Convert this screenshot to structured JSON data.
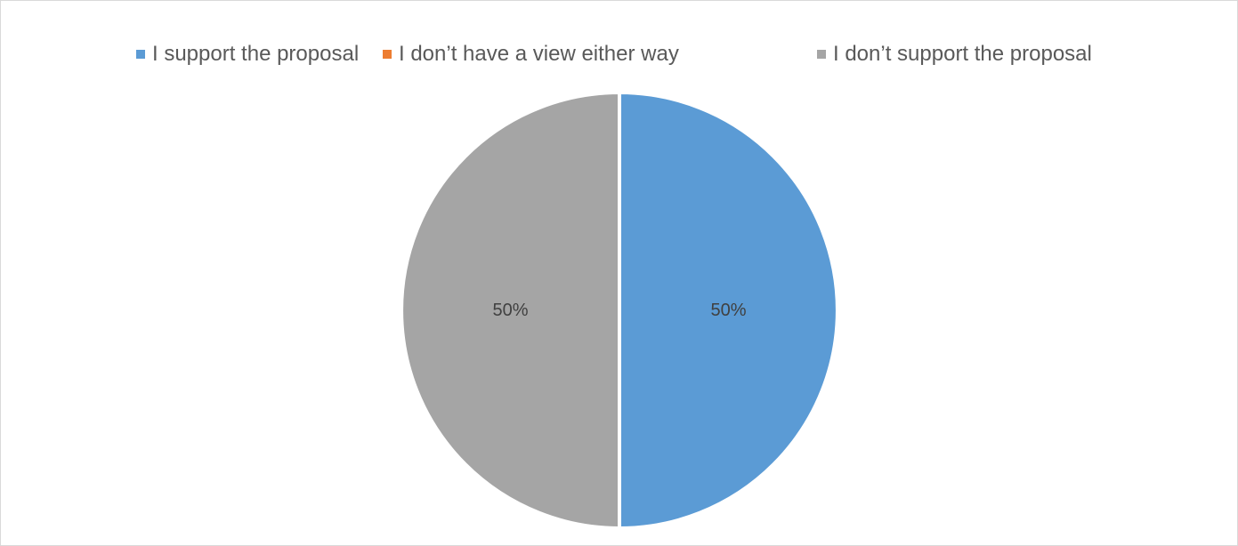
{
  "chart_data": {
    "type": "pie",
    "title": "",
    "legend_position": "top",
    "slices": [
      {
        "label": "I support the proposal",
        "value": 50,
        "data_label": "50%",
        "color": "#5B9BD5"
      },
      {
        "label": "I don’t have a view either way",
        "value": 0,
        "data_label": "",
        "color": "#ED7D31"
      },
      {
        "label": "I don’t support the proposal",
        "value": 50,
        "data_label": "50%",
        "color": "#A5A5A5"
      }
    ]
  }
}
